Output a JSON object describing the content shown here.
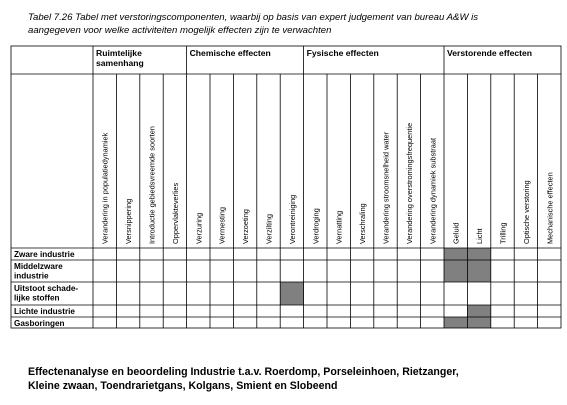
{
  "caption": {
    "line1": "Tabel 7.26   Tabel met verstoringscomponenten, waarbij op basis van expert judgement van bureau A&W is",
    "line2": "aangegeven voor welke activiteiten mogelijk effecten zijn te verwachten"
  },
  "table": {
    "groups": [
      {
        "label_lines": [
          "Ruimtelijke",
          "samenhang"
        ],
        "span": 4
      },
      {
        "label_lines": [
          "Chemische effecten"
        ],
        "span": 5
      },
      {
        "label_lines": [
          "Fysische effecten"
        ],
        "span": 6
      },
      {
        "label_lines": [
          "Verstorende effecten"
        ],
        "span": 5
      }
    ],
    "columns": [
      "Verandering in populatiedynamiek",
      "Versnippering",
      "Introductie gebiedsvreemde soorten",
      "Oppervlakteverlies",
      "Verzuring",
      "Vermesting",
      "Verzoeting",
      "Verzilting",
      "Verontreiniging",
      "Verdroging",
      "Vernatting",
      "Verschraling",
      "Verandering stroomsnelheid water",
      "Verandering overstromingsfrequentie",
      "Verandering dynamiek substraat",
      "Geluid",
      "Licht",
      "Trilling",
      "Optische verstoring",
      "Mechanische effecten"
    ],
    "rows": [
      {
        "label_lines": [
          "Zware industrie"
        ],
        "marks": [
          0,
          0,
          0,
          0,
          0,
          0,
          0,
          0,
          0,
          0,
          0,
          0,
          0,
          0,
          0,
          1,
          1,
          0,
          0,
          0
        ]
      },
      {
        "label_lines": [
          "Middelzware",
          "industrie"
        ],
        "marks": [
          0,
          0,
          0,
          0,
          0,
          0,
          0,
          0,
          0,
          0,
          0,
          0,
          0,
          0,
          0,
          1,
          1,
          0,
          0,
          0
        ]
      },
      {
        "label_lines": [
          "Uitstoot schade-",
          "lijke stoffen"
        ],
        "marks": [
          0,
          0,
          0,
          0,
          0,
          0,
          0,
          0,
          1,
          0,
          0,
          0,
          0,
          0,
          0,
          0,
          0,
          0,
          0,
          0
        ]
      },
      {
        "label_lines": [
          "Lichte industrie"
        ],
        "marks": [
          0,
          0,
          0,
          0,
          0,
          0,
          0,
          0,
          0,
          0,
          0,
          0,
          0,
          0,
          0,
          0,
          1,
          0,
          0,
          0
        ]
      },
      {
        "label_lines": [
          "Gasboringen"
        ],
        "marks": [
          0,
          0,
          0,
          0,
          0,
          0,
          0,
          0,
          0,
          0,
          0,
          0,
          0,
          0,
          0,
          1,
          1,
          0,
          0,
          0
        ]
      }
    ],
    "fill_color": "#808080",
    "line_color": "#000000"
  },
  "footer": {
    "line1": "Effectenanalyse en beoordeling Industrie t.a.v. Roerdomp, Porseleinhoen, Rietzanger,",
    "line2": "Kleine zwaan, Toendrarietgans, Kolgans, Smient en Slobeend"
  }
}
